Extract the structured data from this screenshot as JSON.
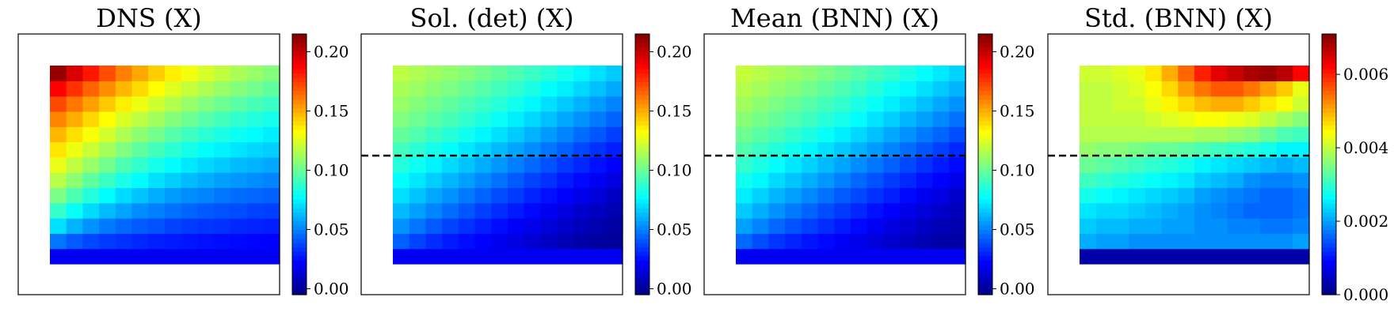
{
  "chart_data": [
    {
      "type": "heatmap",
      "title": "DNS (X)",
      "colormap": "jet",
      "colorbar_range": [
        -0.005,
        0.215
      ],
      "colorbar_ticks": [
        0.0,
        0.05,
        0.1,
        0.15,
        0.2
      ],
      "colorbar_tick_labels": [
        "0.00",
        "0.05",
        "0.10",
        "0.15",
        "0.20"
      ],
      "dashed_line": false,
      "rows": [
        [
          0.02,
          0.02,
          0.02,
          0.02,
          0.02,
          0.02,
          0.02,
          0.02,
          0.02,
          0.02,
          0.02,
          0.02,
          0.02,
          0.02
        ],
        [
          0.048,
          0.042,
          0.038,
          0.035,
          0.033,
          0.031,
          0.029,
          0.028,
          0.027,
          0.026,
          0.025,
          0.024,
          0.023,
          0.022
        ],
        [
          0.071,
          0.061,
          0.054,
          0.049,
          0.045,
          0.042,
          0.04,
          0.037,
          0.035,
          0.034,
          0.033,
          0.031,
          0.03,
          0.029
        ],
        [
          0.089,
          0.079,
          0.07,
          0.063,
          0.058,
          0.053,
          0.05,
          0.047,
          0.044,
          0.042,
          0.04,
          0.039,
          0.037,
          0.036
        ],
        [
          0.104,
          0.094,
          0.085,
          0.077,
          0.07,
          0.065,
          0.06,
          0.056,
          0.053,
          0.051,
          0.048,
          0.046,
          0.045,
          0.043
        ],
        [
          0.117,
          0.108,
          0.098,
          0.09,
          0.083,
          0.077,
          0.071,
          0.067,
          0.063,
          0.06,
          0.057,
          0.055,
          0.053,
          0.051
        ],
        [
          0.128,
          0.119,
          0.11,
          0.102,
          0.094,
          0.088,
          0.082,
          0.077,
          0.073,
          0.069,
          0.066,
          0.063,
          0.061,
          0.059
        ],
        [
          0.138,
          0.129,
          0.121,
          0.113,
          0.105,
          0.098,
          0.092,
          0.087,
          0.082,
          0.078,
          0.075,
          0.072,
          0.069,
          0.067
        ],
        [
          0.148,
          0.139,
          0.131,
          0.123,
          0.115,
          0.108,
          0.102,
          0.096,
          0.091,
          0.087,
          0.083,
          0.08,
          0.077,
          0.074
        ],
        [
          0.159,
          0.15,
          0.141,
          0.133,
          0.125,
          0.118,
          0.112,
          0.106,
          0.101,
          0.096,
          0.092,
          0.088,
          0.085,
          0.082
        ],
        [
          0.172,
          0.162,
          0.153,
          0.144,
          0.136,
          0.129,
          0.122,
          0.116,
          0.11,
          0.105,
          0.101,
          0.097,
          0.093,
          0.09
        ],
        [
          0.188,
          0.177,
          0.166,
          0.157,
          0.148,
          0.14,
          0.133,
          0.126,
          0.12,
          0.115,
          0.11,
          0.106,
          0.102,
          0.098
        ],
        [
          0.21,
          0.196,
          0.183,
          0.171,
          0.16,
          0.151,
          0.143,
          0.136,
          0.13,
          0.124,
          0.119,
          0.114,
          0.11,
          0.106
        ]
      ]
    },
    {
      "type": "heatmap",
      "title": "Sol. (det) (X)",
      "colormap": "jet",
      "colorbar_range": [
        -0.005,
        0.215
      ],
      "colorbar_ticks": [
        0.0,
        0.05,
        0.1,
        0.15,
        0.2
      ],
      "colorbar_tick_labels": [
        "0.00",
        "0.05",
        "0.10",
        "0.15",
        "0.20"
      ],
      "dashed_line": true,
      "rows": [
        [
          0.02,
          0.02,
          0.02,
          0.02,
          0.02,
          0.02,
          0.02,
          0.02,
          0.02,
          0.02,
          0.02,
          0.02,
          0.02,
          0.02
        ],
        [
          0.043,
          0.037,
          0.032,
          0.028,
          0.025,
          0.022,
          0.019,
          0.016,
          0.013,
          0.01,
          0.007,
          0.004,
          0.002,
          0.001
        ],
        [
          0.054,
          0.048,
          0.042,
          0.037,
          0.033,
          0.029,
          0.025,
          0.021,
          0.018,
          0.014,
          0.011,
          0.008,
          0.005,
          0.003
        ],
        [
          0.063,
          0.057,
          0.051,
          0.046,
          0.041,
          0.036,
          0.032,
          0.028,
          0.024,
          0.02,
          0.016,
          0.012,
          0.009,
          0.006
        ],
        [
          0.071,
          0.065,
          0.059,
          0.054,
          0.049,
          0.044,
          0.039,
          0.035,
          0.03,
          0.026,
          0.022,
          0.018,
          0.014,
          0.01
        ],
        [
          0.078,
          0.073,
          0.067,
          0.062,
          0.057,
          0.052,
          0.047,
          0.042,
          0.037,
          0.033,
          0.028,
          0.024,
          0.02,
          0.016
        ],
        [
          0.085,
          0.08,
          0.075,
          0.07,
          0.065,
          0.06,
          0.055,
          0.05,
          0.045,
          0.04,
          0.035,
          0.031,
          0.026,
          0.022
        ],
        [
          0.092,
          0.087,
          0.082,
          0.078,
          0.073,
          0.068,
          0.063,
          0.058,
          0.053,
          0.048,
          0.043,
          0.038,
          0.033,
          0.029
        ],
        [
          0.099,
          0.095,
          0.09,
          0.086,
          0.081,
          0.076,
          0.071,
          0.066,
          0.061,
          0.056,
          0.051,
          0.046,
          0.041,
          0.036
        ],
        [
          0.105,
          0.101,
          0.097,
          0.093,
          0.088,
          0.084,
          0.079,
          0.074,
          0.069,
          0.064,
          0.059,
          0.054,
          0.049,
          0.044
        ],
        [
          0.11,
          0.106,
          0.102,
          0.098,
          0.094,
          0.09,
          0.086,
          0.081,
          0.076,
          0.071,
          0.066,
          0.061,
          0.056,
          0.051
        ],
        [
          0.114,
          0.111,
          0.107,
          0.104,
          0.1,
          0.096,
          0.092,
          0.088,
          0.083,
          0.078,
          0.074,
          0.069,
          0.064,
          0.059
        ],
        [
          0.118,
          0.115,
          0.112,
          0.109,
          0.106,
          0.102,
          0.098,
          0.094,
          0.09,
          0.086,
          0.081,
          0.076,
          0.071,
          0.066
        ]
      ]
    },
    {
      "type": "heatmap",
      "title": "Mean (BNN) (X)",
      "colormap": "jet",
      "colorbar_range": [
        -0.005,
        0.215
      ],
      "colorbar_ticks": [
        0.0,
        0.05,
        0.1,
        0.15,
        0.2
      ],
      "colorbar_tick_labels": [
        "0.00",
        "0.05",
        "0.10",
        "0.15",
        "0.20"
      ],
      "dashed_line": true,
      "rows": [
        [
          0.02,
          0.02,
          0.02,
          0.02,
          0.02,
          0.02,
          0.02,
          0.02,
          0.02,
          0.02,
          0.02,
          0.02,
          0.02,
          0.02
        ],
        [
          0.045,
          0.039,
          0.034,
          0.03,
          0.027,
          0.024,
          0.021,
          0.018,
          0.015,
          0.012,
          0.009,
          0.006,
          0.004,
          0.003
        ],
        [
          0.057,
          0.051,
          0.045,
          0.04,
          0.036,
          0.032,
          0.028,
          0.024,
          0.02,
          0.016,
          0.013,
          0.01,
          0.007,
          0.005
        ],
        [
          0.066,
          0.06,
          0.054,
          0.049,
          0.044,
          0.039,
          0.035,
          0.031,
          0.026,
          0.022,
          0.018,
          0.014,
          0.011,
          0.008
        ],
        [
          0.074,
          0.068,
          0.062,
          0.057,
          0.052,
          0.047,
          0.042,
          0.038,
          0.033,
          0.029,
          0.024,
          0.02,
          0.016,
          0.012
        ],
        [
          0.081,
          0.076,
          0.07,
          0.065,
          0.06,
          0.055,
          0.05,
          0.045,
          0.04,
          0.035,
          0.031,
          0.026,
          0.022,
          0.018
        ],
        [
          0.088,
          0.083,
          0.078,
          0.073,
          0.068,
          0.063,
          0.058,
          0.053,
          0.048,
          0.043,
          0.038,
          0.033,
          0.028,
          0.024
        ],
        [
          0.095,
          0.09,
          0.085,
          0.081,
          0.076,
          0.071,
          0.066,
          0.061,
          0.056,
          0.051,
          0.046,
          0.041,
          0.036,
          0.031
        ],
        [
          0.101,
          0.097,
          0.093,
          0.088,
          0.084,
          0.079,
          0.074,
          0.069,
          0.064,
          0.059,
          0.054,
          0.049,
          0.044,
          0.039
        ],
        [
          0.107,
          0.103,
          0.099,
          0.095,
          0.091,
          0.086,
          0.082,
          0.077,
          0.072,
          0.067,
          0.062,
          0.057,
          0.052,
          0.047
        ],
        [
          0.112,
          0.108,
          0.104,
          0.1,
          0.096,
          0.092,
          0.088,
          0.083,
          0.079,
          0.074,
          0.069,
          0.064,
          0.059,
          0.054
        ],
        [
          0.116,
          0.113,
          0.109,
          0.106,
          0.102,
          0.098,
          0.094,
          0.09,
          0.085,
          0.08,
          0.076,
          0.071,
          0.066,
          0.061
        ],
        [
          0.12,
          0.117,
          0.114,
          0.111,
          0.108,
          0.104,
          0.1,
          0.096,
          0.092,
          0.088,
          0.083,
          0.078,
          0.073,
          0.068
        ]
      ]
    },
    {
      "type": "heatmap",
      "title": "Std. (BNN) (X)",
      "colormap": "jet",
      "colorbar_range": [
        0.0,
        0.0071
      ],
      "colorbar_ticks": [
        0.0,
        0.002,
        0.004,
        0.006
      ],
      "colorbar_tick_labels": [
        "0.000",
        "0.002",
        "0.004",
        "0.006"
      ],
      "dashed_line": true,
      "rows": [
        [
          0.0003,
          0.0003,
          0.0003,
          0.0003,
          0.0003,
          0.0003,
          0.0003,
          0.0003,
          0.0003,
          0.0003,
          0.0003,
          0.0003,
          0.0003,
          0.0003
        ],
        [
          0.0021,
          0.002,
          0.002,
          0.0019,
          0.0019,
          0.0019,
          0.0019,
          0.0019,
          0.0019,
          0.0019,
          0.0019,
          0.0019,
          0.0019,
          0.002
        ],
        [
          0.0023,
          0.0022,
          0.0022,
          0.0021,
          0.0021,
          0.002,
          0.002,
          0.0019,
          0.0019,
          0.0018,
          0.0018,
          0.0017,
          0.0017,
          0.0018
        ],
        [
          0.0025,
          0.0024,
          0.0024,
          0.0023,
          0.0022,
          0.0021,
          0.002,
          0.0019,
          0.0018,
          0.0017,
          0.0016,
          0.0016,
          0.0016,
          0.0017
        ],
        [
          0.0028,
          0.0027,
          0.0026,
          0.0025,
          0.0024,
          0.0023,
          0.0022,
          0.002,
          0.0019,
          0.0018,
          0.0017,
          0.0016,
          0.0016,
          0.0017
        ],
        [
          0.0031,
          0.003,
          0.0029,
          0.0028,
          0.0027,
          0.0026,
          0.0025,
          0.0023,
          0.0022,
          0.0021,
          0.0019,
          0.0018,
          0.0018,
          0.0019
        ],
        [
          0.0034,
          0.0033,
          0.0032,
          0.0031,
          0.003,
          0.0029,
          0.0028,
          0.0026,
          0.0025,
          0.0024,
          0.0023,
          0.0022,
          0.0021,
          0.0022
        ],
        [
          0.0037,
          0.0036,
          0.0036,
          0.0035,
          0.0034,
          0.0034,
          0.0033,
          0.0032,
          0.0031,
          0.003,
          0.0029,
          0.0028,
          0.0026,
          0.0026
        ],
        [
          0.0039,
          0.0039,
          0.0039,
          0.0039,
          0.0039,
          0.0039,
          0.0039,
          0.0038,
          0.0038,
          0.0037,
          0.0036,
          0.0034,
          0.0032,
          0.0031
        ],
        [
          0.004,
          0.004,
          0.004,
          0.004,
          0.0041,
          0.0042,
          0.0043,
          0.0044,
          0.0044,
          0.0043,
          0.0042,
          0.004,
          0.0038,
          0.0036
        ],
        [
          0.004,
          0.004,
          0.0041,
          0.0041,
          0.0043,
          0.0045,
          0.0047,
          0.0049,
          0.005,
          0.005,
          0.0048,
          0.0046,
          0.0044,
          0.0041
        ],
        [
          0.004,
          0.004,
          0.0041,
          0.0042,
          0.0044,
          0.0047,
          0.0051,
          0.0054,
          0.0056,
          0.0056,
          0.0054,
          0.0051,
          0.0048,
          0.0043
        ],
        [
          0.0041,
          0.0041,
          0.0042,
          0.0043,
          0.0046,
          0.005,
          0.0055,
          0.006,
          0.0064,
          0.0066,
          0.0068,
          0.0069,
          0.0067,
          0.0062
        ]
      ]
    }
  ]
}
